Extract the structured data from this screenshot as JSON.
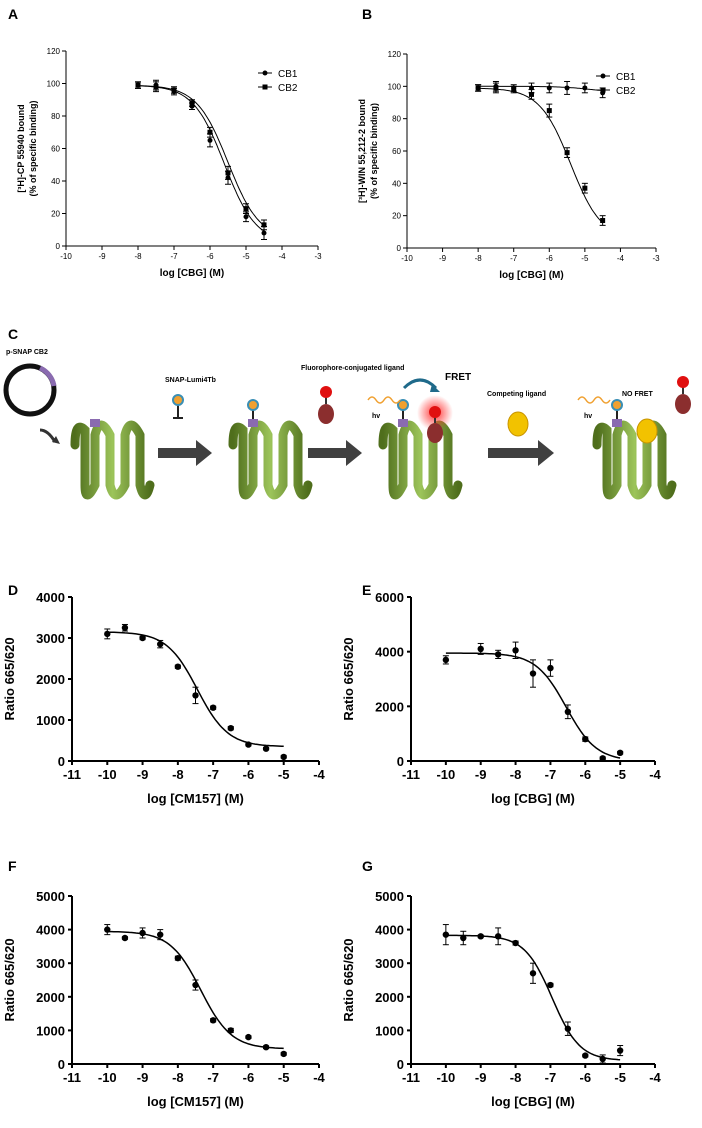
{
  "panels": {
    "A": "A",
    "B": "B",
    "C": "C",
    "D": "D",
    "E": "E",
    "F": "F",
    "G": "G"
  },
  "schematic": {
    "plasmid_label": "p-SNAP CB2",
    "step1_label": "SNAP-Lumi4Tb",
    "step2_label": "Fluorophore-conjugated ligand",
    "step3_label": "Competing ligand",
    "fret_label": "FRET",
    "no_fret_label": "NO FRET",
    "hv_label": "hv",
    "colors": {
      "receptor": "#6b8e2a",
      "receptor_light": "#a9c96a",
      "arrow": "#404040",
      "tag": "#8a6bb0",
      "ligand_body": "#8b2e2e",
      "ligand_head": "#e01010",
      "competitor": "#f2c200",
      "lumi": "#3a8fb5",
      "light_wave": "#f0a030"
    }
  },
  "chart_data": [
    {
      "id": "A",
      "type": "scatter",
      "xlabel": "log [CBG] (M)",
      "ylabel_line1": "[³H]-CP 55940 bound",
      "ylabel_line2": "(% of specific binding)",
      "xlim": [
        -10,
        -3
      ],
      "ylim": [
        0,
        120
      ],
      "xticks": [
        -10,
        -9,
        -8,
        -7,
        -6,
        -5,
        -4,
        -3
      ],
      "yticks": [
        0,
        20,
        40,
        60,
        80,
        100,
        120
      ],
      "legend_position": "top-right",
      "series": [
        {
          "name": "CB1",
          "marker": "circle",
          "x": [
            -8,
            -7.5,
            -7,
            -6.5,
            -6,
            -5.5,
            -5,
            -4.5
          ],
          "y": [
            99,
            99,
            95,
            86,
            65,
            42,
            18,
            8
          ],
          "err": [
            2,
            3,
            2,
            2,
            4,
            4,
            3,
            4
          ],
          "curve": {
            "top": 99,
            "bottom": 2,
            "logIC50": -5.6,
            "hill": 1
          }
        },
        {
          "name": "CB2",
          "marker": "square",
          "x": [
            -8,
            -7.5,
            -7,
            -6.5,
            -6,
            -5.5,
            -5,
            -4.5
          ],
          "y": [
            99,
            98,
            96,
            88,
            70,
            45,
            23,
            13
          ],
          "err": [
            2,
            3,
            2,
            2,
            3,
            4,
            3,
            3
          ],
          "curve": {
            "top": 99,
            "bottom": 4,
            "logIC50": -5.5,
            "hill": 1
          }
        }
      ]
    },
    {
      "id": "B",
      "type": "scatter",
      "xlabel": "log [CBG] (M)",
      "ylabel_line1": "[³H]-WIN 55,212-2 bound",
      "ylabel_line2": "(% of specific binding)",
      "xlim": [
        -10,
        -3
      ],
      "ylim": [
        0,
        120
      ],
      "xticks": [
        -10,
        -9,
        -8,
        -7,
        -6,
        -5,
        -4,
        -3
      ],
      "yticks": [
        0,
        20,
        40,
        60,
        80,
        100,
        120
      ],
      "legend_position": "top-right",
      "series": [
        {
          "name": "CB1",
          "marker": "circle",
          "x": [
            -8,
            -7.5,
            -7,
            -6.5,
            -6,
            -5.5,
            -5,
            -4.5
          ],
          "y": [
            99,
            100,
            99,
            99,
            99,
            99,
            99,
            96
          ],
          "err": [
            2,
            3,
            2,
            3,
            3,
            4,
            3,
            3
          ],
          "curve": {
            "top": 100,
            "bottom": 96,
            "logIC50": -4.8,
            "hill": 1
          }
        },
        {
          "name": "CB2",
          "marker": "square",
          "x": [
            -8,
            -7.5,
            -7,
            -6.5,
            -6,
            -5.5,
            -5,
            -4.5
          ],
          "y": [
            99,
            99,
            98,
            95,
            85,
            59,
            37,
            17
          ],
          "err": [
            2,
            3,
            2,
            3,
            4,
            3,
            3,
            3
          ],
          "curve": {
            "top": 99,
            "bottom": 5,
            "logIC50": -5.4,
            "hill": 1
          }
        }
      ]
    },
    {
      "id": "D",
      "type": "scatter",
      "xlabel": "log [CM157] (M)",
      "ylabel": "Ratio 665/620",
      "xlim": [
        -11,
        -4
      ],
      "ylim": [
        0,
        4000
      ],
      "xticks": [
        -11,
        -10,
        -9,
        -8,
        -7,
        -6,
        -5,
        -4
      ],
      "yticks": [
        0,
        1000,
        2000,
        3000,
        4000
      ],
      "series": [
        {
          "marker": "circle",
          "x": [
            -10,
            -9.5,
            -9,
            -8.5,
            -8,
            -7.5,
            -7,
            -6.5,
            -6,
            -5.5,
            -5
          ],
          "y": [
            3100,
            3250,
            3000,
            2850,
            2300,
            1600,
            1300,
            800,
            400,
            300,
            100
          ],
          "err": [
            120,
            80,
            40,
            90,
            40,
            200,
            40,
            40,
            30,
            30,
            30
          ],
          "curve": {
            "top": 3150,
            "bottom": 350,
            "logIC50": -7.45,
            "hill": 1
          }
        }
      ]
    },
    {
      "id": "E",
      "type": "scatter",
      "xlabel": "log [CBG] (M)",
      "ylabel": "Ratio 665/620",
      "xlim": [
        -11,
        -4
      ],
      "ylim": [
        0,
        6000
      ],
      "xticks": [
        -11,
        -10,
        -9,
        -8,
        -7,
        -6,
        -5,
        -4
      ],
      "yticks": [
        0,
        2000,
        4000,
        6000
      ],
      "series": [
        {
          "marker": "circle",
          "x": [
            -10,
            -9,
            -8.5,
            -8,
            -7.5,
            -7,
            -6.5,
            -6,
            -5.5,
            -5
          ],
          "y": [
            3700,
            4100,
            3900,
            4050,
            3200,
            3400,
            1800,
            800,
            100,
            300
          ],
          "err": [
            150,
            200,
            150,
            300,
            500,
            300,
            250,
            80,
            50,
            50
          ],
          "curve": {
            "top": 3950,
            "bottom": 0,
            "logIC50": -6.55,
            "hill": 1
          }
        }
      ]
    },
    {
      "id": "F",
      "type": "scatter",
      "xlabel": "log [CM157] (M)",
      "ylabel": "Ratio 665/620",
      "xlim": [
        -11,
        -4
      ],
      "ylim": [
        0,
        5000
      ],
      "xticks": [
        -11,
        -10,
        -9,
        -8,
        -7,
        -6,
        -5,
        -4
      ],
      "yticks": [
        0,
        1000,
        2000,
        3000,
        4000,
        5000
      ],
      "series": [
        {
          "marker": "circle",
          "x": [
            -10,
            -9.5,
            -9,
            -8.5,
            -8,
            -7.5,
            -7,
            -6.5,
            -6,
            -5.5,
            -5
          ],
          "y": [
            4000,
            3750,
            3900,
            3850,
            3150,
            2350,
            1300,
            1000,
            800,
            500,
            300
          ],
          "err": [
            150,
            40,
            150,
            150,
            60,
            150,
            50,
            60,
            40,
            40,
            40
          ],
          "curve": {
            "top": 3950,
            "bottom": 450,
            "logIC50": -7.35,
            "hill": 1
          }
        }
      ]
    },
    {
      "id": "G",
      "type": "scatter",
      "xlabel": "log [CBG] (M)",
      "ylabel": "Ratio 665/620",
      "xlim": [
        -11,
        -4
      ],
      "ylim": [
        0,
        5000
      ],
      "xticks": [
        -11,
        -10,
        -9,
        -8,
        -7,
        -6,
        -5,
        -4
      ],
      "yticks": [
        0,
        1000,
        2000,
        3000,
        4000,
        5000
      ],
      "series": [
        {
          "marker": "circle",
          "x": [
            -10,
            -9.5,
            -9,
            -8.5,
            -8,
            -7.5,
            -7,
            -6.5,
            -6,
            -5.5,
            -5
          ],
          "y": [
            3850,
            3750,
            3800,
            3800,
            3600,
            2700,
            2350,
            1050,
            250,
            150,
            400
          ],
          "err": [
            300,
            200,
            40,
            250,
            60,
            300,
            50,
            200,
            40,
            120,
            150
          ],
          "curve": {
            "top": 3830,
            "bottom": 100,
            "logIC50": -6.95,
            "hill": 1.1
          }
        }
      ]
    }
  ]
}
